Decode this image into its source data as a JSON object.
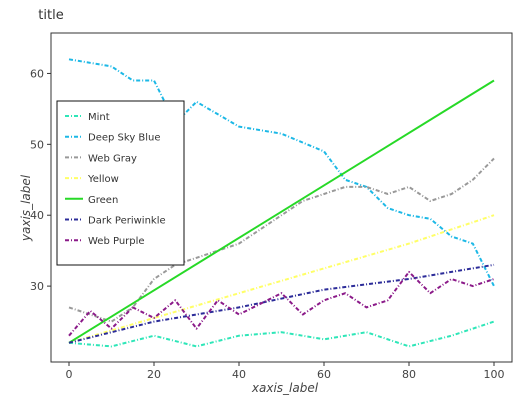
{
  "chart_data": {
    "type": "line",
    "title": "title",
    "xlabel": "xaxis_label",
    "ylabel": "yaxis_label",
    "xlim": [
      0,
      100
    ],
    "ylim": [
      20,
      65
    ],
    "xticks": [
      0,
      20,
      40,
      60,
      80,
      100
    ],
    "yticks": [
      30,
      40,
      50,
      60
    ],
    "legend": "left-middle",
    "series": [
      {
        "name": "Mint",
        "color": "#2EE6B8",
        "dash": "4,2,1,2",
        "x": [
          0,
          10,
          20,
          30,
          40,
          50,
          60,
          70,
          80,
          90,
          100
        ],
        "y": [
          22,
          21.5,
          23,
          21.5,
          23,
          23.5,
          22.5,
          23.5,
          21.5,
          23,
          25
        ]
      },
      {
        "name": "Deep Sky Blue",
        "color": "#1CB8E6",
        "dash": "4,2,1,2",
        "x": [
          0,
          10,
          15,
          20,
          25,
          30,
          40,
          50,
          60,
          65,
          70,
          75,
          80,
          85,
          90,
          95,
          100
        ],
        "y": [
          62,
          61,
          59,
          59,
          53,
          56,
          52.5,
          51.5,
          49,
          45,
          44,
          41,
          40,
          39.5,
          37,
          36,
          30
        ]
      },
      {
        "name": "Web Gray",
        "color": "#999999",
        "dash": "4,2,1,2",
        "x": [
          0,
          5,
          10,
          15,
          20,
          25,
          30,
          35,
          40,
          45,
          50,
          55,
          60,
          65,
          70,
          75,
          80,
          85,
          90,
          95,
          100
        ],
        "y": [
          27,
          26,
          25,
          27,
          31,
          33,
          34,
          35,
          36,
          38,
          40,
          42,
          43,
          44,
          44,
          43,
          44,
          42,
          43,
          45,
          48
        ]
      },
      {
        "name": "Yellow",
        "color": "#FFFF66",
        "dash": "4,2,1,2",
        "x": [
          0,
          20,
          40,
          60,
          80,
          100
        ],
        "y": [
          22,
          25.5,
          29,
          32.5,
          36,
          40
        ]
      },
      {
        "name": "Green",
        "color": "#27D927",
        "dash": "",
        "x": [
          0,
          100
        ],
        "y": [
          22,
          59
        ]
      },
      {
        "name": "Dark Periwinkle",
        "color": "#2C2C99",
        "dash": "4,2,1,2",
        "x": [
          0,
          20,
          40,
          60,
          80,
          90,
          100
        ],
        "y": [
          22,
          25,
          27,
          29.5,
          31,
          32,
          33
        ]
      },
      {
        "name": "Web Purple",
        "color": "#8B1A89",
        "dash": "4,2,1,2",
        "x": [
          0,
          5,
          10,
          15,
          20,
          25,
          30,
          35,
          40,
          45,
          50,
          55,
          60,
          65,
          70,
          75,
          80,
          85,
          90,
          95,
          100
        ],
        "y": [
          23,
          26.5,
          24,
          27,
          25.5,
          28,
          24,
          28,
          26,
          27.5,
          29,
          26,
          28,
          29,
          27,
          28,
          32,
          29,
          31,
          30,
          31
        ]
      }
    ]
  }
}
